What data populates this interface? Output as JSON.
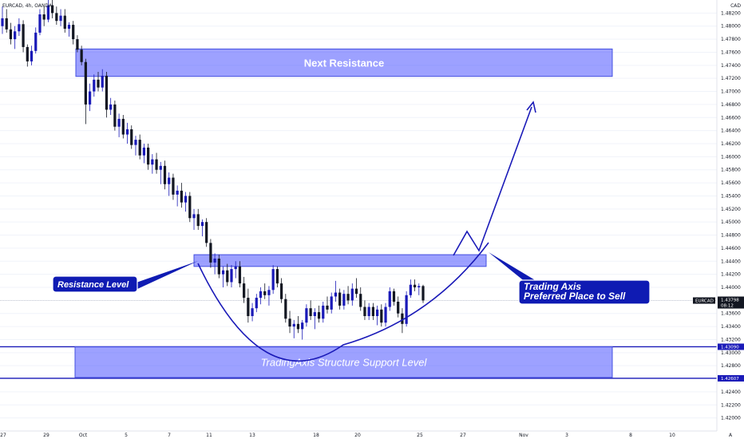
{
  "chart_data": {
    "type": "candlestick",
    "title": "EURCAD, 4h, OANDA",
    "currency": "CAD",
    "ylim": [
      1.418,
      1.484
    ],
    "y_ticks": [
      "1.48200",
      "1.48000",
      "1.47800",
      "1.47600",
      "1.47400",
      "1.47200",
      "1.47000",
      "1.46800",
      "1.46600",
      "1.46400",
      "1.46200",
      "1.46000",
      "1.45800",
      "1.45600",
      "1.45400",
      "1.45200",
      "1.45000",
      "1.44800",
      "1.44600",
      "1.44400",
      "1.44200",
      "1.44000",
      "1.43800",
      "1.43600",
      "1.43400",
      "1.43200",
      "1.43000",
      "1.42800",
      "1.42600",
      "1.42400",
      "1.42200",
      "1.42000"
    ],
    "x_ticks": [
      "27",
      "29",
      "Oct",
      "5",
      "7",
      "11",
      "13",
      "18",
      "20",
      "25",
      "27",
      "Nov",
      "3",
      "8",
      "10"
    ],
    "last_price": "1.43798",
    "last_price_value": 1.43798,
    "countdown": "08:12",
    "symbol_tag": "EURCAD",
    "corner_label": "A",
    "level_lines": [
      {
        "label": "1.43090",
        "value": 1.4309
      },
      {
        "label": "1.42607",
        "value": 1.42607
      }
    ],
    "zones": [
      {
        "label": "Next Resistance",
        "top": 1.4765,
        "bottom": 1.4723,
        "style": "bold"
      },
      {
        "label": "",
        "top": 1.445,
        "bottom": 1.4432,
        "style": "bold"
      },
      {
        "label": "TradingAxis Structure Support Level",
        "top": 1.4309,
        "bottom": 1.4262,
        "style": "italic"
      }
    ],
    "callouts": [
      {
        "lines": [
          "Resistance Level"
        ]
      },
      {
        "lines": [
          "Trading Axis",
          "Preferred Place to Sell"
        ]
      }
    ],
    "candles": [
      [
        1.48,
        1.483,
        1.4788,
        1.4812
      ],
      [
        1.4812,
        1.4826,
        1.479,
        1.4795
      ],
      [
        1.4795,
        1.4805,
        1.4772,
        1.478
      ],
      [
        1.478,
        1.48,
        1.4765,
        1.4792
      ],
      [
        1.4792,
        1.4812,
        1.4785,
        1.4803
      ],
      [
        1.4803,
        1.4809,
        1.476,
        1.4768
      ],
      [
        1.4768,
        1.4772,
        1.4738,
        1.4746
      ],
      [
        1.4746,
        1.477,
        1.474,
        1.4762
      ],
      [
        1.4762,
        1.4798,
        1.4758,
        1.479
      ],
      [
        1.479,
        1.4826,
        1.4786,
        1.4818
      ],
      [
        1.4818,
        1.483,
        1.48,
        1.481
      ],
      [
        1.481,
        1.484,
        1.4806,
        1.4832
      ],
      [
        1.4832,
        1.484,
        1.4812,
        1.482
      ],
      [
        1.482,
        1.483,
        1.4802,
        1.4808
      ],
      [
        1.4808,
        1.4826,
        1.48,
        1.4816
      ],
      [
        1.4816,
        1.4826,
        1.479,
        1.4796
      ],
      [
        1.4796,
        1.4806,
        1.4784,
        1.4802
      ],
      [
        1.4802,
        1.4808,
        1.4772,
        1.478
      ],
      [
        1.478,
        1.4786,
        1.476,
        1.4764
      ],
      [
        1.4764,
        1.477,
        1.474,
        1.4745
      ],
      [
        1.4745,
        1.475,
        1.465,
        1.468
      ],
      [
        1.468,
        1.4712,
        1.467,
        1.47
      ],
      [
        1.47,
        1.4726,
        1.4692,
        1.4718
      ],
      [
        1.4718,
        1.473,
        1.47,
        1.4706
      ],
      [
        1.4706,
        1.4734,
        1.47,
        1.4724
      ],
      [
        1.4724,
        1.473,
        1.466,
        1.4672
      ],
      [
        1.4672,
        1.469,
        1.4664,
        1.468
      ],
      [
        1.468,
        1.4686,
        1.464,
        1.4646
      ],
      [
        1.4646,
        1.4666,
        1.463,
        1.4658
      ],
      [
        1.4658,
        1.4664,
        1.4628,
        1.4634
      ],
      [
        1.4634,
        1.4652,
        1.462,
        1.4642
      ],
      [
        1.4642,
        1.4648,
        1.4612,
        1.4618
      ],
      [
        1.4618,
        1.4632,
        1.4602,
        1.4626
      ],
      [
        1.4626,
        1.4634,
        1.4596,
        1.4602
      ],
      [
        1.4602,
        1.462,
        1.459,
        1.4614
      ],
      [
        1.4614,
        1.462,
        1.458,
        1.4588
      ],
      [
        1.4588,
        1.4604,
        1.4574,
        1.4596
      ],
      [
        1.4596,
        1.4606,
        1.4574,
        1.458
      ],
      [
        1.458,
        1.4592,
        1.4558,
        1.4586
      ],
      [
        1.4586,
        1.4594,
        1.455,
        1.4558
      ],
      [
        1.4558,
        1.4576,
        1.454,
        1.4568
      ],
      [
        1.4568,
        1.4574,
        1.4534,
        1.4542
      ],
      [
        1.4542,
        1.4556,
        1.4524,
        1.4548
      ],
      [
        1.4548,
        1.456,
        1.4522,
        1.453
      ],
      [
        1.453,
        1.4546,
        1.4516,
        1.454
      ],
      [
        1.454,
        1.4546,
        1.45,
        1.4506
      ],
      [
        1.4506,
        1.452,
        1.4488,
        1.4512
      ],
      [
        1.4512,
        1.452,
        1.4488,
        1.4494
      ],
      [
        1.4494,
        1.4504,
        1.4478,
        1.45
      ],
      [
        1.45,
        1.4506,
        1.4462,
        1.4468
      ],
      [
        1.4468,
        1.4474,
        1.443,
        1.4438
      ],
      [
        1.4438,
        1.4452,
        1.442,
        1.4444
      ],
      [
        1.4444,
        1.445,
        1.4414,
        1.442
      ],
      [
        1.442,
        1.4432,
        1.44,
        1.4426
      ],
      [
        1.4426,
        1.4436,
        1.4402,
        1.4408
      ],
      [
        1.4408,
        1.4434,
        1.44,
        1.4428
      ],
      [
        1.4428,
        1.444,
        1.4414,
        1.4432
      ],
      [
        1.4432,
        1.444,
        1.44,
        1.4406
      ],
      [
        1.4406,
        1.4416,
        1.4376,
        1.4384
      ],
      [
        1.4384,
        1.4398,
        1.4346,
        1.4356
      ],
      [
        1.4356,
        1.4376,
        1.4348,
        1.4368
      ],
      [
        1.4368,
        1.439,
        1.4362,
        1.4384
      ],
      [
        1.4384,
        1.44,
        1.4374,
        1.4394
      ],
      [
        1.4394,
        1.4406,
        1.4382,
        1.4388
      ],
      [
        1.4388,
        1.4402,
        1.4372,
        1.4396
      ],
      [
        1.4396,
        1.4434,
        1.439,
        1.4428
      ],
      [
        1.4428,
        1.4432,
        1.44,
        1.4406
      ],
      [
        1.4406,
        1.4414,
        1.4376,
        1.4382
      ],
      [
        1.4382,
        1.439,
        1.4346,
        1.4352
      ],
      [
        1.4352,
        1.4364,
        1.433,
        1.434
      ],
      [
        1.434,
        1.435,
        1.4322,
        1.4344
      ],
      [
        1.4344,
        1.4356,
        1.433,
        1.4336
      ],
      [
        1.4336,
        1.435,
        1.432,
        1.4346
      ],
      [
        1.4346,
        1.4374,
        1.434,
        1.4368
      ],
      [
        1.4368,
        1.438,
        1.435,
        1.4356
      ],
      [
        1.4356,
        1.4368,
        1.4336,
        1.4362
      ],
      [
        1.4362,
        1.4372,
        1.4346,
        1.4352
      ],
      [
        1.4352,
        1.4378,
        1.4346,
        1.4372
      ],
      [
        1.4372,
        1.4386,
        1.436,
        1.4366
      ],
      [
        1.4366,
        1.4392,
        1.436,
        1.4386
      ],
      [
        1.4386,
        1.441,
        1.4378,
        1.4392
      ],
      [
        1.4392,
        1.4398,
        1.4366,
        1.4372
      ],
      [
        1.4372,
        1.4396,
        1.4366,
        1.439
      ],
      [
        1.439,
        1.4402,
        1.4374,
        1.438
      ],
      [
        1.438,
        1.4406,
        1.4372,
        1.4398
      ],
      [
        1.4398,
        1.4414,
        1.4384,
        1.439
      ],
      [
        1.439,
        1.44,
        1.4364,
        1.437
      ],
      [
        1.437,
        1.438,
        1.435,
        1.4356
      ],
      [
        1.4356,
        1.4376,
        1.435,
        1.437
      ],
      [
        1.437,
        1.4376,
        1.435,
        1.4356
      ],
      [
        1.4356,
        1.4372,
        1.4342,
        1.4366
      ],
      [
        1.4366,
        1.4374,
        1.434,
        1.4346
      ],
      [
        1.4346,
        1.4376,
        1.434,
        1.437
      ],
      [
        1.437,
        1.44,
        1.4364,
        1.4394
      ],
      [
        1.4394,
        1.4398,
        1.4372,
        1.4378
      ],
      [
        1.4378,
        1.4386,
        1.4354,
        1.436
      ],
      [
        1.436,
        1.4368,
        1.433,
        1.4344
      ],
      [
        1.4344,
        1.4394,
        1.434,
        1.4388
      ],
      [
        1.4388,
        1.4412,
        1.4384,
        1.4404
      ],
      [
        1.4404,
        1.4412,
        1.4394,
        1.44
      ],
      [
        1.44,
        1.4406,
        1.4388,
        1.4402
      ],
      [
        1.4402,
        1.4404,
        1.4376,
        1.438
      ]
    ]
  }
}
